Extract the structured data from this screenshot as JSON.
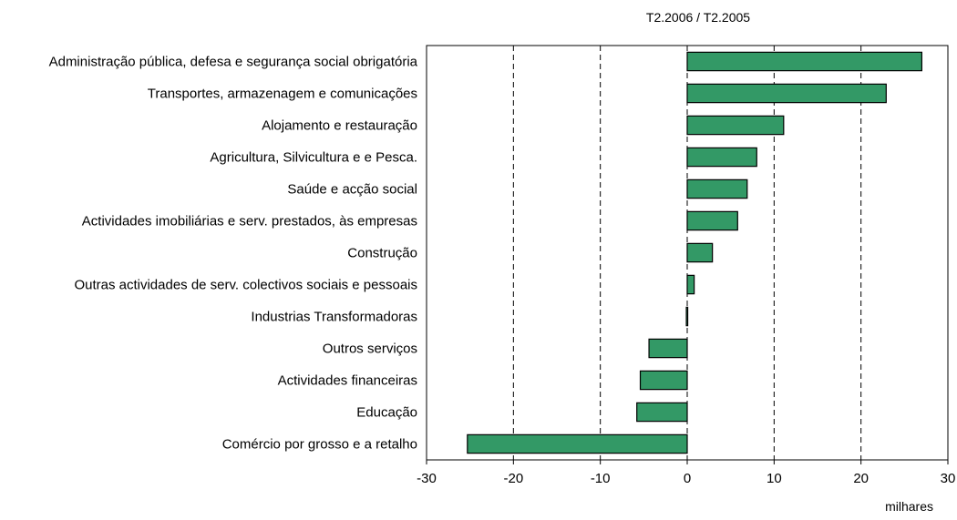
{
  "chart_data": {
    "type": "bar",
    "orientation": "horizontal",
    "title": "T2.2006 / T2.2005",
    "xlabel": "milhares",
    "ylabel": "",
    "xlim": [
      -30,
      30
    ],
    "xticks": [
      -30,
      -20,
      -10,
      0,
      10,
      20,
      30
    ],
    "grid": "vertical dashed",
    "bar_color": "#339966",
    "categories": [
      "Administração pública, defesa e segurança social obrigatória",
      "Transportes, armazenagem e comunicações",
      "Alojamento e restauração",
      "Agricultura, Silvicultura e e Pesca.",
      "Saúde e acção social",
      "Actividades imobiliárias e serv. prestados, às empresas",
      "Construção",
      "Outras actividades de serv. colectivos sociais e pessoais",
      "Industrias Transformadoras",
      "Outros serviços",
      "Actividades financeiras",
      "Educação",
      "Comércio por grosso e a retalho"
    ],
    "values": [
      27.0,
      22.9,
      11.1,
      8.0,
      6.9,
      5.8,
      2.9,
      0.8,
      -0.1,
      -4.4,
      -5.4,
      -5.8,
      -25.3
    ]
  }
}
